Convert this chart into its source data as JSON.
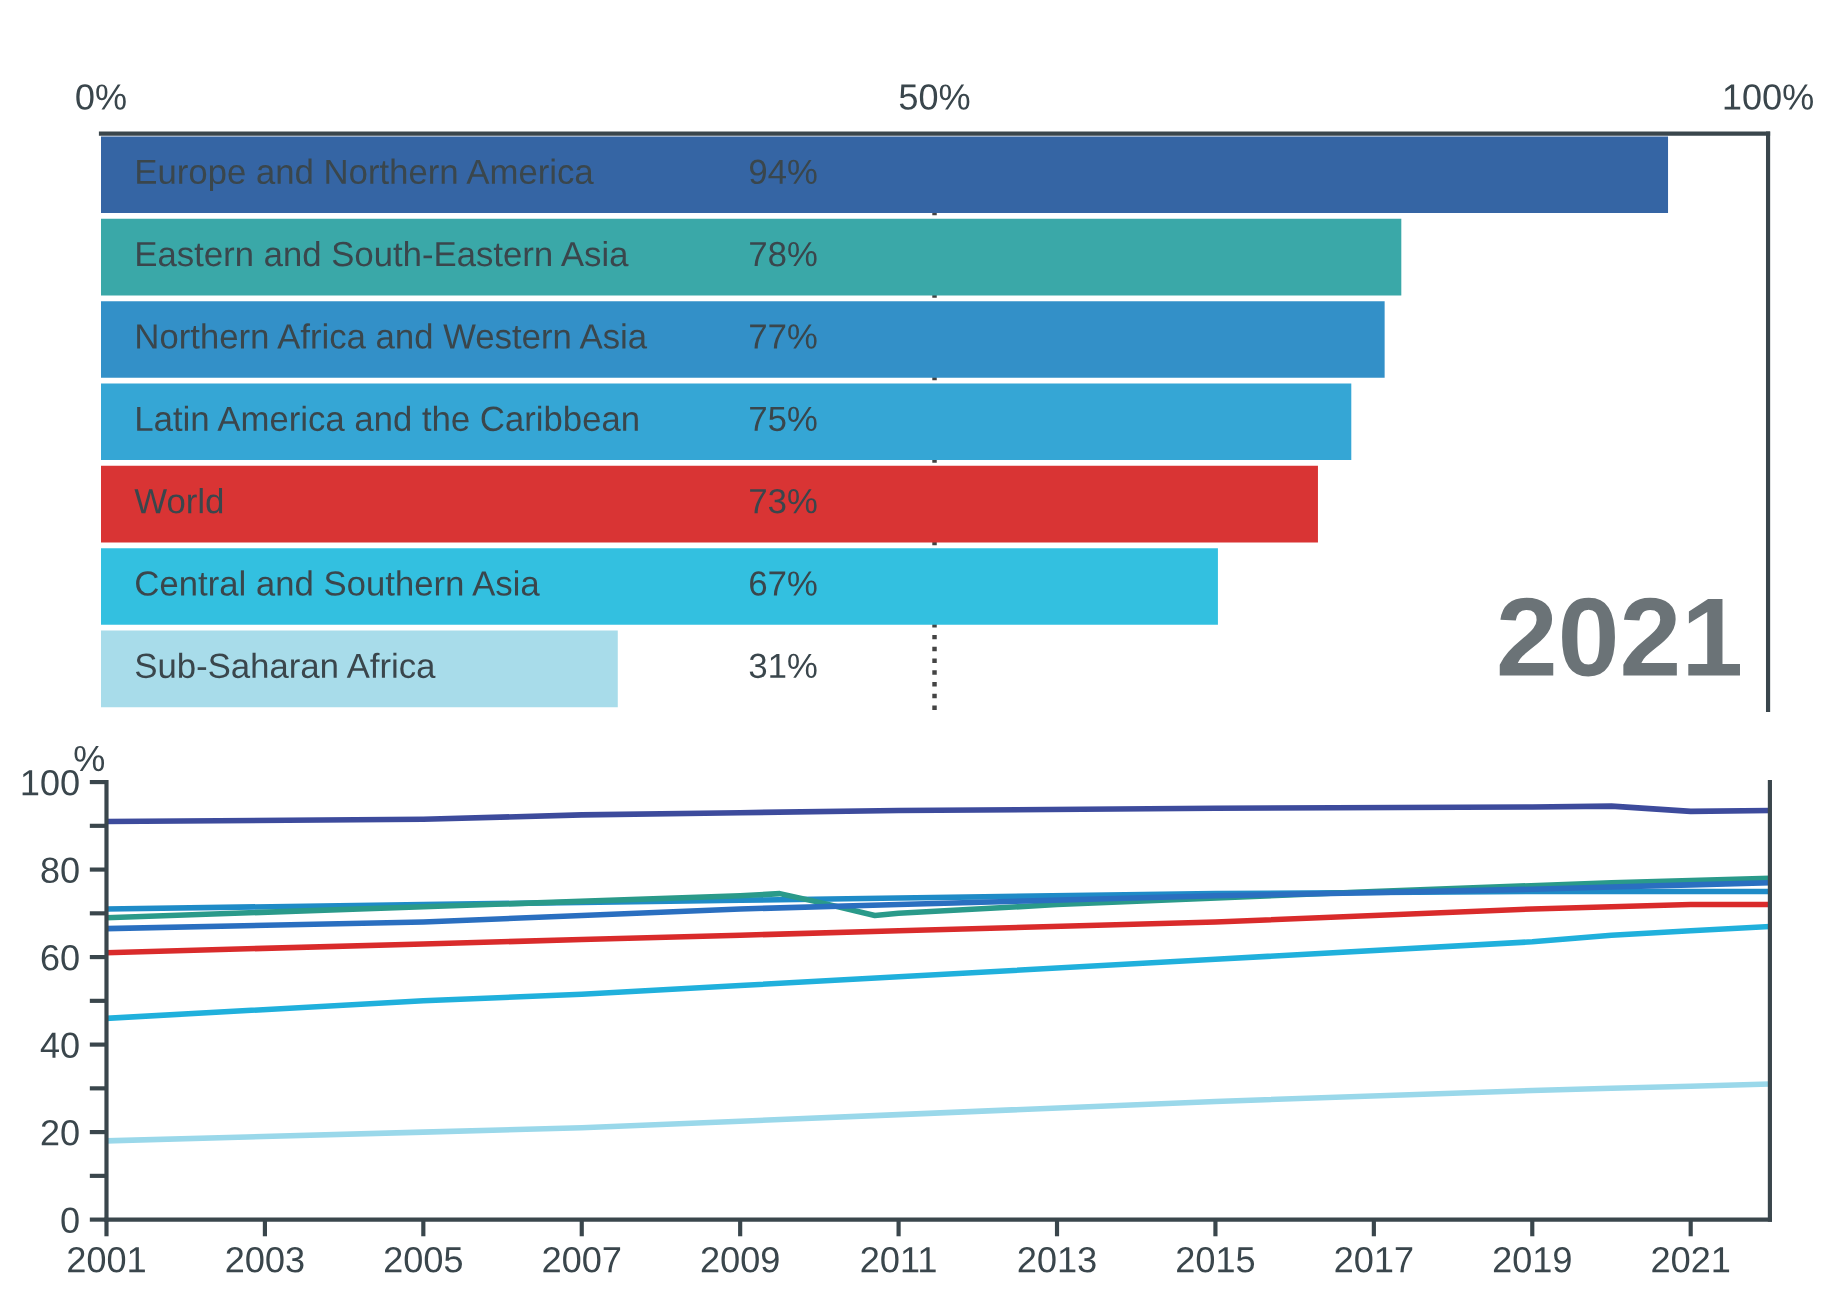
{
  "chart_data": [
    {
      "type": "bar",
      "orientation": "horizontal",
      "categories": [
        "Europe and Northern America",
        "Eastern and South-Eastern Asia",
        "Northern Africa and Western Asia",
        "Latin America and the Caribbean",
        "World",
        "Central and Southern Asia",
        "Sub-Saharan Africa"
      ],
      "values": [
        94,
        78,
        77,
        75,
        73,
        67,
        31
      ],
      "colors": [
        "#3565a4",
        "#3aa8a8",
        "#3390c8",
        "#35a6d5",
        "#d93434",
        "#33c0e0",
        "#a8dcea"
      ],
      "value_labels": [
        "94%",
        "78%",
        "77%",
        "75%",
        "73%",
        "67%",
        "31%"
      ],
      "xlim": [
        0,
        100
      ],
      "xticks": [
        {
          "value": 0,
          "label": "0%"
        },
        {
          "value": 50,
          "label": "50%"
        },
        {
          "value": 100,
          "label": "100%"
        }
      ],
      "ref_lines": [
        {
          "axis": "x",
          "value": 50,
          "line_style": "dotted",
          "color": "#444444"
        }
      ],
      "annotations": [
        "2021"
      ],
      "grid": false,
      "legend": false
    },
    {
      "type": "line",
      "ylabel": "%",
      "x": [
        2001,
        2005,
        2007,
        2009,
        2011,
        2015,
        2019,
        2020,
        2021,
        2022
      ],
      "series": [
        {
          "color": "#3d4b9c",
          "values": [
            91,
            91.5,
            92.5,
            93,
            93.5,
            94,
            94.3,
            94.5,
            93.3,
            93.5
          ]
        },
        {
          "color": "#1f8bc7",
          "values": [
            71,
            72,
            72.5,
            73,
            73.5,
            74.5,
            75,
            75,
            75,
            75
          ]
        },
        {
          "color": "#2a9a8a",
          "x": [
            2001,
            2005,
            2009,
            2009.5,
            2010,
            2010.7,
            2011,
            2013,
            2017,
            2020,
            2022
          ],
          "values": [
            69,
            71.5,
            74,
            74.5,
            72.5,
            69.5,
            70,
            72,
            75,
            77,
            78
          ]
        },
        {
          "color": "#2a6fc0",
          "values": [
            66.5,
            68,
            69.5,
            71,
            72,
            74,
            75.5,
            76,
            76.5,
            77
          ]
        },
        {
          "color": "#d92b2b",
          "values": [
            61,
            63,
            64,
            65,
            66,
            68,
            71,
            71.5,
            72,
            72
          ]
        },
        {
          "color": "#20b0dc",
          "values": [
            46,
            50,
            51.5,
            53.5,
            55.5,
            59.5,
            63.5,
            65,
            66,
            67
          ]
        },
        {
          "color": "#9ad8ea",
          "values": [
            18,
            20,
            21,
            22.5,
            24,
            27,
            29.5,
            30,
            30.5,
            31
          ]
        }
      ],
      "xlim": [
        2001,
        2022
      ],
      "xticks": [
        2001,
        2003,
        2005,
        2007,
        2009,
        2011,
        2013,
        2015,
        2017,
        2019,
        2021
      ],
      "ylim": [
        0,
        100
      ],
      "yticks": [
        0,
        {
          "value": 10,
          "label": null
        },
        20,
        {
          "value": 30,
          "label": null
        },
        40,
        {
          "value": 50,
          "label": null
        },
        60,
        {
          "value": 70,
          "label": null
        },
        80,
        {
          "value": 90,
          "label": null
        },
        100
      ],
      "grid": false,
      "legend": false,
      "marker": "none",
      "line_style": "solid"
    }
  ]
}
